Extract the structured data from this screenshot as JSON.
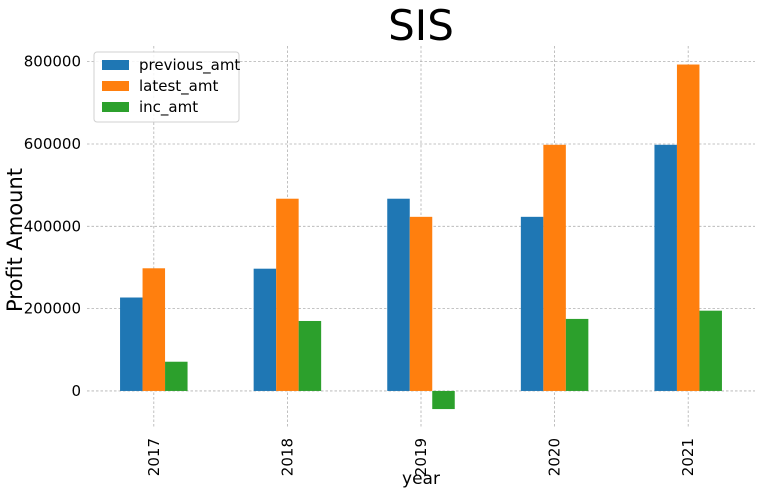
{
  "chart_data": {
    "type": "bar",
    "title": "SIS",
    "xlabel": "year",
    "ylabel": "Profit Amount",
    "categories": [
      "2017",
      "2018",
      "2019",
      "2020",
      "2021"
    ],
    "series": [
      {
        "name": "previous_amt",
        "values": [
          227000,
          297000,
          467000,
          423000,
          598000
        ],
        "color": "#1f77b4"
      },
      {
        "name": "latest_amt",
        "values": [
          298000,
          467000,
          423000,
          598000,
          793000
        ],
        "color": "#ff7f0e"
      },
      {
        "name": "inc_amt",
        "values": [
          71000,
          170000,
          -44000,
          175000,
          195000
        ],
        "color": "#2ca02c"
      }
    ],
    "ylim": [
      -90000,
      838000
    ],
    "yticks": [
      0,
      200000,
      400000,
      600000,
      800000
    ],
    "ytick_labels": [
      "0",
      "200000",
      "400000",
      "600000",
      "800000"
    ],
    "grid": true,
    "legend_position": "top-left",
    "xtick_rotation": "vertical"
  }
}
